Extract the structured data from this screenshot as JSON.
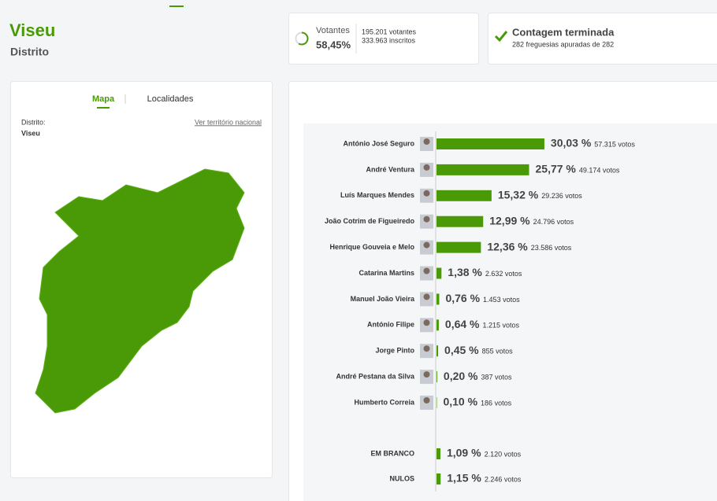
{
  "header": {
    "title": "Viseu",
    "subtitle": "Distrito"
  },
  "turnout": {
    "label": "Votantes",
    "percent": 58.45,
    "percent_label": "58,45%",
    "votes": "195.201 votantes",
    "registered": "333.963 inscritos"
  },
  "count": {
    "title": "Contagem terminada",
    "detail": "282 freguesias apuradas de 282"
  },
  "map": {
    "tabs": [
      "Mapa",
      "Localidades"
    ],
    "district_label": "Distrito:",
    "district": "Viseu",
    "link": "Ver território nacional"
  },
  "results": {
    "candidates": [
      {
        "name": "António José Seguro",
        "percent": 30.03,
        "percent_label": "30,03 %",
        "votes": "57.315 votos"
      },
      {
        "name": "André Ventura",
        "percent": 25.77,
        "percent_label": "25,77 %",
        "votes": "49.174 votos"
      },
      {
        "name": "Luís Marques Mendes",
        "percent": 15.32,
        "percent_label": "15,32 %",
        "votes": "29.236 votos"
      },
      {
        "name": "João Cotrim de Figueiredo",
        "percent": 12.99,
        "percent_label": "12,99 %",
        "votes": "24.796 votos"
      },
      {
        "name": "Henrique Gouveia e Melo",
        "percent": 12.36,
        "percent_label": "12,36 %",
        "votes": "23.586 votos"
      },
      {
        "name": "Catarina Martins",
        "percent": 1.38,
        "percent_label": "1,38 %",
        "votes": "2.632 votos"
      },
      {
        "name": "Manuel João Vieira",
        "percent": 0.76,
        "percent_label": "0,76 %",
        "votes": "1.453 votos"
      },
      {
        "name": "António Filipe",
        "percent": 0.64,
        "percent_label": "0,64 %",
        "votes": "1.215 votos"
      },
      {
        "name": "Jorge Pinto",
        "percent": 0.45,
        "percent_label": "0,45 %",
        "votes": "855 votos"
      },
      {
        "name": "André Pestana da Silva",
        "percent": 0.2,
        "percent_label": "0,20 %",
        "votes": "387 votos"
      },
      {
        "name": "Humberto Correia",
        "percent": 0.1,
        "percent_label": "0,10 %",
        "votes": "186 votos"
      }
    ],
    "others": [
      {
        "name": "EM BRANCO",
        "percent": 1.09,
        "percent_label": "1,09 %",
        "votes": "2.120 votos"
      },
      {
        "name": "NULOS",
        "percent": 1.15,
        "percent_label": "1,15 %",
        "votes": "2.246 votos"
      }
    ]
  }
}
